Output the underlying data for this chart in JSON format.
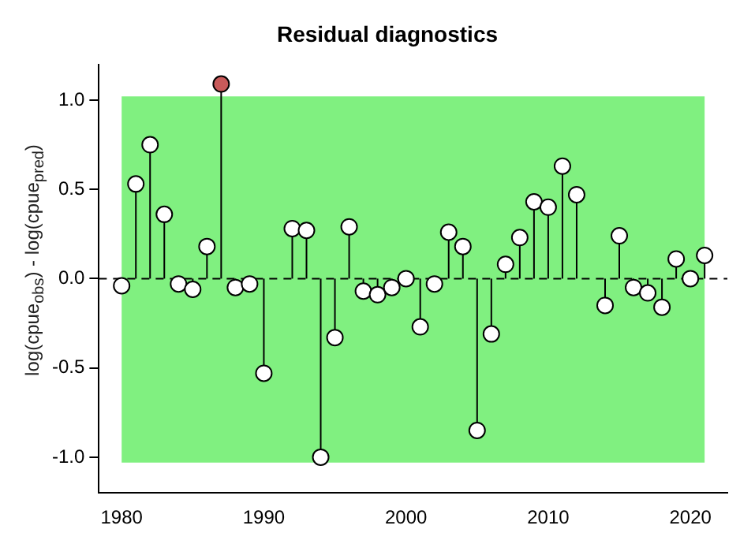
{
  "chart_data": {
    "type": "lollipop",
    "title": "Residual diagnostics",
    "ylabel": "log(cpue$_{obs}$) - log(cpue$_{pred}$)",
    "x": [
      1980,
      1981,
      1982,
      1983,
      1984,
      1985,
      1986,
      1987,
      1988,
      1989,
      1990,
      1991,
      1992,
      1993,
      1994,
      1995,
      1996,
      1997,
      1998,
      1999,
      2000,
      2001,
      2002,
      2003,
      2004,
      2005,
      2006,
      2007,
      2008,
      2009,
      2010,
      2011,
      2012,
      2013,
      2014,
      2015,
      2016,
      2017,
      2018,
      2019,
      2020,
      2021
    ],
    "values": [
      -0.04,
      0.53,
      0.75,
      0.36,
      -0.03,
      -0.06,
      0.18,
      1.09,
      -0.05,
      -0.03,
      -0.53,
      null,
      0.28,
      0.27,
      -1.0,
      -0.33,
      0.29,
      -0.07,
      -0.09,
      -0.05,
      0.0,
      -0.27,
      -0.03,
      0.26,
      0.18,
      -0.85,
      -0.31,
      0.08,
      0.23,
      0.43,
      0.4,
      0.63,
      0.47,
      null,
      -0.15,
      0.24,
      -0.05,
      -0.08,
      -0.16,
      0.11,
      0.0,
      0.13
    ],
    "colors": [
      "#ffffff",
      "#ffffff",
      "#ffffff",
      "#ffffff",
      "#ffffff",
      "#ffffff",
      "#ffffff",
      "#c85a5a",
      "#ffffff",
      "#ffffff",
      "#ffffff",
      "#ffffff",
      "#ffffff",
      "#ffffff",
      "#ffffff",
      "#ffffff",
      "#ffffff",
      "#ffffff",
      "#ffffff",
      "#ffffff",
      "#ffffff",
      "#ffffff",
      "#ffffff",
      "#ffffff",
      "#ffffff",
      "#ffffff",
      "#ffffff",
      "#ffffff",
      "#ffffff",
      "#ffffff",
      "#ffffff",
      "#ffffff",
      "#ffffff",
      "#ffffff",
      "#ffffff",
      "#ffffff",
      "#ffffff",
      "#ffffff",
      "#ffffff",
      "#ffffff",
      "#ffffff",
      "#ffffff"
    ],
    "xlim": [
      1978.4,
      2022.6
    ],
    "xticks": [
      1980,
      1990,
      2000,
      2010,
      2020
    ],
    "ylim": [
      -1.2,
      1.2
    ],
    "yticks": [
      {
        "value": -1,
        "label": "-1.0"
      },
      -0.5,
      {
        "value": 0,
        "label": "0.0"
      },
      0.5,
      {
        "value": 1,
        "label": "1.0"
      }
    ],
    "bands": [
      {
        "axis": "y",
        "from": -1.03,
        "to": 1.02,
        "color": "#80f080"
      }
    ],
    "ref_lines": [
      {
        "axis": "y",
        "value": 0,
        "line_style": "dashed"
      }
    ],
    "marker": "circle",
    "grid": false,
    "legend": false
  }
}
